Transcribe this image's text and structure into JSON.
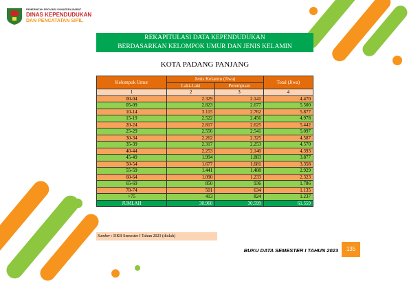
{
  "header": {
    "agency_line1": "PEMERINTAH PROVINSI SUMATERA BARAT",
    "agency_line2": "DINAS KEPENDUDUKAN",
    "agency_line3": "DAN PENCATATAN SIPIL"
  },
  "title": {
    "line1": "REKAPITULASI DATA KEPENDUDUKAN",
    "line2": "BERDASARKAN KELOMPOK UMUR DAN JENIS KELAMIN"
  },
  "subtitle": "KOTA PADANG PANJANG",
  "table": {
    "headers": {
      "age_group": "Kelompok Umur",
      "gender": "Jenis Kelamin (Jiwa)",
      "male": "Laki-Laki",
      "female": "Perempuan",
      "total": "Total (Jiwa)"
    },
    "column_numbers": [
      "1",
      "2",
      "3",
      "4"
    ],
    "rows": [
      [
        "00-04",
        "2.329",
        "2.141",
        "4.470"
      ],
      [
        "05-09",
        "2.823",
        "2.677",
        "5.500"
      ],
      [
        "10-14",
        "3.115",
        "2.762",
        "5.877"
      ],
      [
        "15-19",
        "2.522",
        "2.456",
        "4.978"
      ],
      [
        "20-24",
        "2.817",
        "2.625",
        "5.442"
      ],
      [
        "25-29",
        "2.556",
        "2.541",
        "5.097"
      ],
      [
        "30-34",
        "2.262",
        "2.325",
        "4.587"
      ],
      [
        "35-39",
        "2.317",
        "2.253",
        "4.570"
      ],
      [
        "40-44",
        "2.253",
        "2.140",
        "4.393"
      ],
      [
        "45-49",
        "1.994",
        "1.883",
        "3.877"
      ],
      [
        "50-54",
        "1.677",
        "1.681",
        "3.358"
      ],
      [
        "55-59",
        "1.441",
        "1.488",
        "2.929"
      ],
      [
        "60-64",
        "1.090",
        "1.233",
        "2.323"
      ],
      [
        "65-69",
        "850",
        "936",
        "1.786"
      ],
      [
        "70-74",
        "501",
        "634",
        "1.135"
      ],
      [
        ">75",
        "413",
        "824",
        "1.237"
      ]
    ],
    "total_row": [
      "JUMLAH",
      "30.960",
      "30.599",
      "61.559"
    ]
  },
  "source": {
    "label": "Sumber",
    "text": ": DKB Semester I Tahun 2023 (diolah)"
  },
  "footer": {
    "book_title": "BUKU DATA SEMESTER I TAHUN 2023",
    "page_number": "135"
  }
}
